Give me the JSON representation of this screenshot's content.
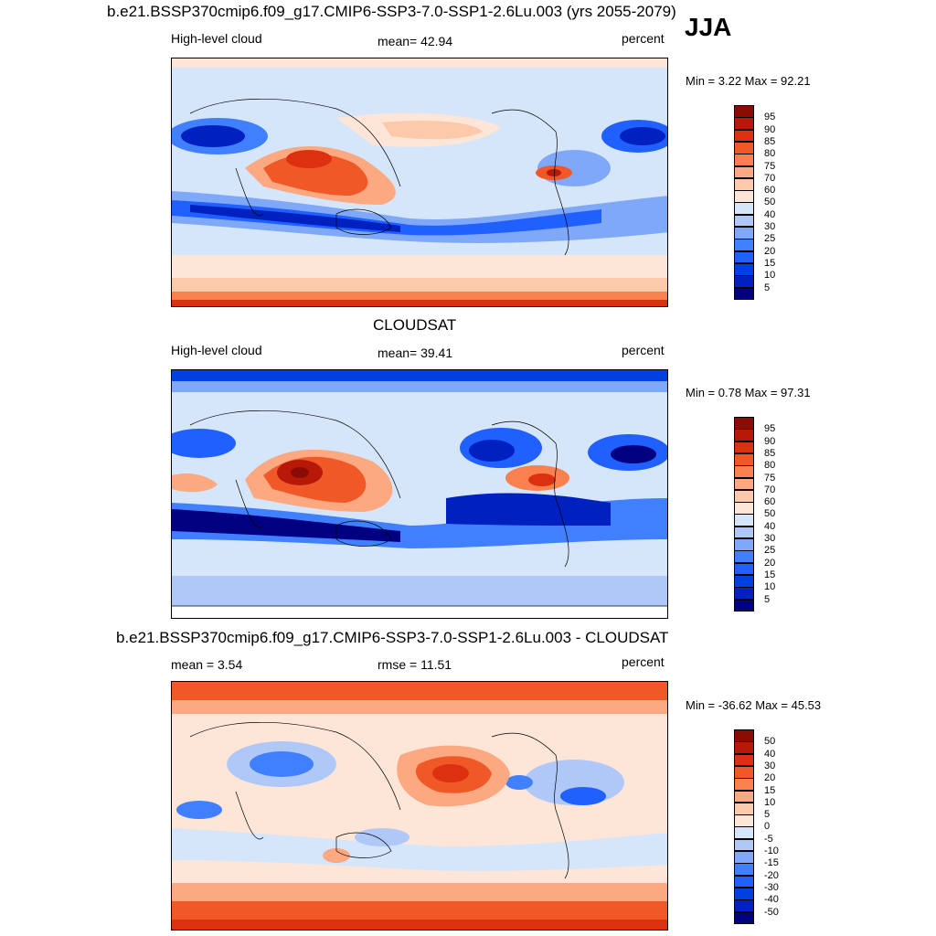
{
  "season": "JJA",
  "colors": {
    "seq": [
      "#000080",
      "#0020c0",
      "#0040e0",
      "#2060ff",
      "#4080ff",
      "#80a8f8",
      "#b0c8f8",
      "#d6e6fa",
      "#fde6d8",
      "#fcc9aa",
      "#fca880",
      "#fa8050",
      "#f05828",
      "#dc3010",
      "#b81808",
      "#8a0c04"
    ],
    "diff": [
      "#000080",
      "#0020c0",
      "#0040e0",
      "#2060ff",
      "#4080ff",
      "#80a8f8",
      "#b0c8f8",
      "#d6e6fa",
      "#fde6d8",
      "#fcc9aa",
      "#fca880",
      "#fa8050",
      "#f05828",
      "#dc3010",
      "#b81808",
      "#8a0c04"
    ]
  },
  "panels": [
    {
      "title": "b.e21.BSSP370cmip6.f09_g17.CMIP6-SSP3-7.0-SSP1-2.6Lu.003 (yrs 2055-2079)",
      "left_label": "High-level cloud",
      "mid_label": "mean=  42.94",
      "right_label": "percent",
      "minmax": "Min =   3.22 Max =  92.21",
      "colorbar": [
        "95",
        "90",
        "85",
        "80",
        "75",
        "70",
        "60",
        "50",
        "40",
        "30",
        "25",
        "20",
        "15",
        "10",
        "5"
      ]
    },
    {
      "title": "CLOUDSAT",
      "left_label": "High-level cloud",
      "mid_label": "mean=  39.41",
      "right_label": "percent",
      "minmax": "Min =   0.78 Max =  97.31",
      "colorbar": [
        "95",
        "90",
        "85",
        "80",
        "75",
        "70",
        "60",
        "50",
        "40",
        "30",
        "25",
        "20",
        "15",
        "10",
        "5"
      ]
    },
    {
      "title": "b.e21.BSSP370cmip6.f09_g17.CMIP6-SSP3-7.0-SSP1-2.6Lu.003 - CLOUDSAT",
      "left_label": "mean =   3.54",
      "mid_label": "rmse =  11.51",
      "right_label": "percent",
      "minmax": "Min = -36.62 Max =  45.53",
      "colorbar": [
        "50",
        "40",
        "30",
        "20",
        "15",
        "10",
        "5",
        "0",
        "-5",
        "-10",
        "-15",
        "-20",
        "-30",
        "-40",
        "-50"
      ]
    }
  ]
}
